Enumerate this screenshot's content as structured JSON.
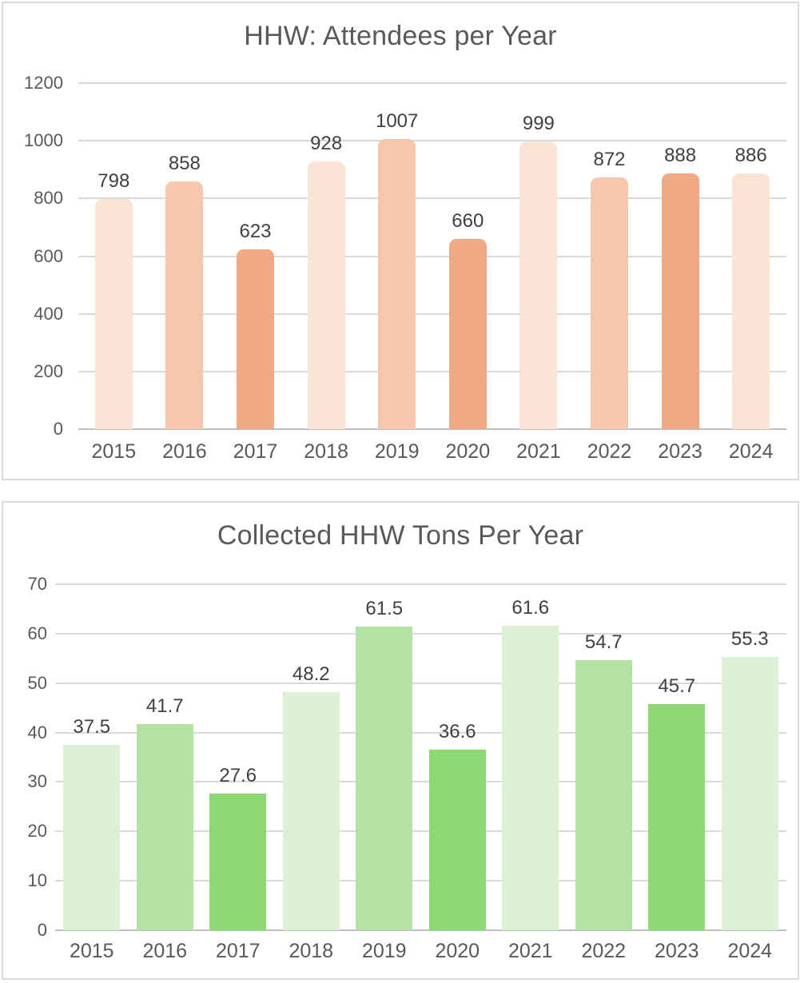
{
  "chart_data": [
    {
      "type": "bar",
      "title": "HHW: Attendees per Year",
      "categories": [
        "2015",
        "2016",
        "2017",
        "2018",
        "2019",
        "2020",
        "2021",
        "2022",
        "2023",
        "2024"
      ],
      "values": [
        798,
        858,
        623,
        928,
        1007,
        660,
        999,
        872,
        888,
        886
      ],
      "data_labels": [
        "798",
        "858",
        "623",
        "928",
        "1007",
        "660",
        "999",
        "872",
        "888",
        "886"
      ],
      "xlabel": "",
      "ylabel": "",
      "ylim": [
        0,
        1200
      ],
      "ytick_step": 200,
      "ytick_labels": [
        "0",
        "200",
        "400",
        "600",
        "800",
        "1000",
        "1200"
      ],
      "grid": true,
      "legend": "none",
      "bar_colors": [
        "#FBE3D6",
        "#F6C7AC",
        "#F1A983",
        "#FBE3D6",
        "#F6C7AC",
        "#F1A983",
        "#FBE3D6",
        "#F6C7AC",
        "#F1A983",
        "#FBE3D6"
      ],
      "text_colors": {
        "title": "#595959",
        "axis": "#595959",
        "data_label": "#404040"
      },
      "gridline_color": "#D9D9D9",
      "axis_line_color": "#BFBFBF"
    },
    {
      "type": "bar",
      "title": "Collected HHW Tons Per Year",
      "categories": [
        "2015",
        "2016",
        "2017",
        "2018",
        "2019",
        "2020",
        "2021",
        "2022",
        "2023",
        "2024"
      ],
      "values": [
        37.5,
        41.7,
        27.6,
        48.2,
        61.5,
        36.6,
        61.6,
        54.7,
        45.7,
        55.3
      ],
      "data_labels": [
        "37.5",
        "41.7",
        "27.6",
        "48.2",
        "61.5",
        "36.6",
        "61.6",
        "54.7",
        "45.7",
        "55.3"
      ],
      "xlabel": "",
      "ylabel": "",
      "ylim": [
        0,
        70
      ],
      "ytick_step": 10,
      "ytick_labels": [
        "0",
        "10",
        "20",
        "30",
        "40",
        "50",
        "60",
        "70"
      ],
      "grid": true,
      "legend": "none",
      "bar_colors": [
        "#DCF1D4",
        "#B4E1A4",
        "#8CD973",
        "#DCF1D4",
        "#B4E1A4",
        "#8CD973",
        "#DCF1D4",
        "#B4E1A4",
        "#8CD973",
        "#DCF1D4"
      ],
      "text_colors": {
        "title": "#595959",
        "axis": "#595959",
        "data_label": "#404040"
      },
      "gridline_color": "#D9D9D9",
      "axis_line_color": "#BFBFBF"
    }
  ]
}
